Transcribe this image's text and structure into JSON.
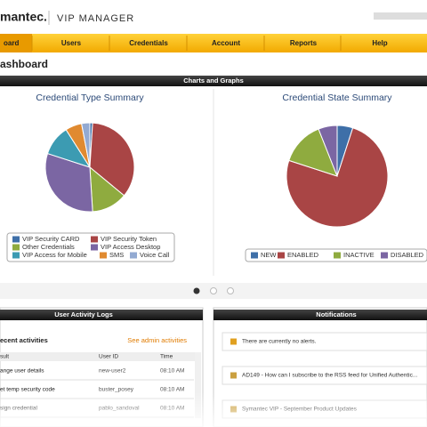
{
  "header": {
    "brand": "mantec.",
    "product": "VIP MANAGER"
  },
  "nav": [
    "oard",
    "Users",
    "Credentials",
    "Account",
    "Reports",
    "Help"
  ],
  "page_title": "ashboard",
  "charts_panel": {
    "title": "Charts and Graphs"
  },
  "chart_data": [
    {
      "type": "pie",
      "title": "Credential Type Summary",
      "categories": [
        "VIP Security CARD",
        "VIP Security Token",
        "Other Credentials",
        "VIP Access Desktop",
        "VIP Access for Mobile",
        "SMS",
        "Voice Call"
      ],
      "values": [
        1,
        35,
        13,
        31,
        11,
        6,
        3
      ],
      "colors": [
        "#3e6fa8",
        "#a94545",
        "#8fab3f",
        "#7b66a3",
        "#3c9bb2",
        "#e08a30",
        "#93aad2"
      ]
    },
    {
      "type": "pie",
      "title": "Credential State Summary",
      "categories": [
        "NEW",
        "ENABLED",
        "INACTIVE",
        "DISABLED"
      ],
      "values": [
        5,
        75,
        14,
        6
      ],
      "colors": [
        "#3e6fa8",
        "#a94545",
        "#8fab3f",
        "#7b66a3"
      ]
    }
  ],
  "activity": {
    "title": "User Activity Logs",
    "subtitle": "ecent activities",
    "link": "See admin activities",
    "columns": [
      "sult",
      "User ID",
      "Time"
    ],
    "rows": [
      [
        "ange user details",
        "new-user2",
        "08:10 AM"
      ],
      [
        "et temp security code",
        "buster_posey",
        "08:10 AM"
      ],
      [
        "sign credential",
        "pablo_sandoval",
        "08:10 AM"
      ]
    ]
  },
  "notifications": {
    "title": "Notifications",
    "items": [
      "There are currently no alerts.",
      "AD149 - How can I subscribe to the RSS feed for Unified Authentic...",
      "Symantec VIP - September Product Updates"
    ]
  }
}
